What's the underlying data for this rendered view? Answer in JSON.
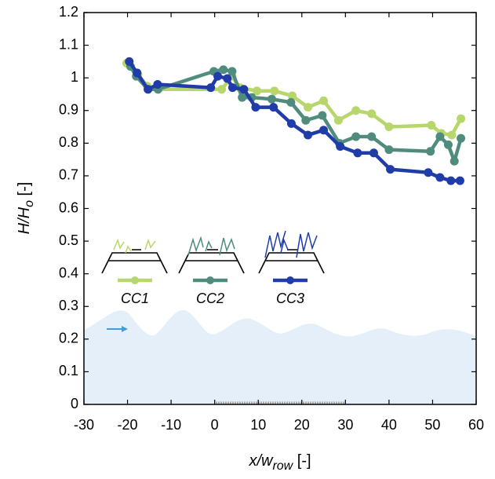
{
  "chart_data": {
    "type": "line",
    "xlabel": {
      "main": "x/w",
      "sub": "row",
      "unit": " [-]"
    },
    "ylabel": {
      "main": "H/H",
      "sub": "o",
      "unit": " [-]"
    },
    "xlim": [
      -30,
      60
    ],
    "xticks": [
      -30,
      -20,
      -10,
      0,
      10,
      20,
      30,
      40,
      50,
      60
    ],
    "ylim": [
      0,
      1.2
    ],
    "yticks": [
      0,
      0.1,
      0.2,
      0.3,
      0.4,
      0.5,
      0.6,
      0.7,
      0.8,
      0.9,
      1,
      1.1,
      1.2
    ],
    "series": [
      {
        "name": "CC1",
        "color": "#b7d66c",
        "x": [
          -20.2,
          -17.6,
          -15.5,
          -13,
          1.6,
          4,
          5.8,
          9.7,
          13.7,
          17.8,
          21.4,
          25,
          28.4,
          32.4,
          36,
          40,
          49.7,
          52,
          54.4,
          56.5
        ],
        "values": [
          1.045,
          1.01,
          0.975,
          0.965,
          0.965,
          1.005,
          0.97,
          0.96,
          0.96,
          0.945,
          0.91,
          0.93,
          0.87,
          0.9,
          0.89,
          0.85,
          0.855,
          0.83,
          0.825,
          0.875
        ]
      },
      {
        "name": "CC2",
        "color": "#4f8c7e",
        "x": [
          -19.3,
          -18,
          -15.3,
          -13,
          -0.2,
          2,
          4,
          6.3,
          8.5,
          13.1,
          17.5,
          20.9,
          24.7,
          28.6,
          32.4,
          36,
          40,
          49.5,
          51.7,
          53.6,
          55,
          56.5
        ],
        "values": [
          1.035,
          1.005,
          0.965,
          0.965,
          1.02,
          1.025,
          1.02,
          0.94,
          0.94,
          0.935,
          0.925,
          0.87,
          0.885,
          0.8,
          0.82,
          0.82,
          0.78,
          0.775,
          0.82,
          0.795,
          0.745,
          0.815
        ]
      },
      {
        "name": "CC3",
        "color": "#1f3ca8",
        "x": [
          -19.6,
          -17.8,
          -15.3,
          -13.1,
          -0.9,
          0.7,
          2.9,
          4.1,
          6.7,
          9.4,
          13.5,
          17.6,
          21.4,
          25,
          28.8,
          32.8,
          36.5,
          40.3,
          49,
          51.7,
          54.2,
          56.3
        ],
        "values": [
          1.05,
          1.015,
          0.965,
          0.98,
          0.97,
          1.005,
          0.998,
          0.97,
          0.965,
          0.91,
          0.91,
          0.86,
          0.825,
          0.84,
          0.79,
          0.77,
          0.77,
          0.72,
          0.71,
          0.695,
          0.685,
          0.685
        ]
      }
    ]
  }
}
